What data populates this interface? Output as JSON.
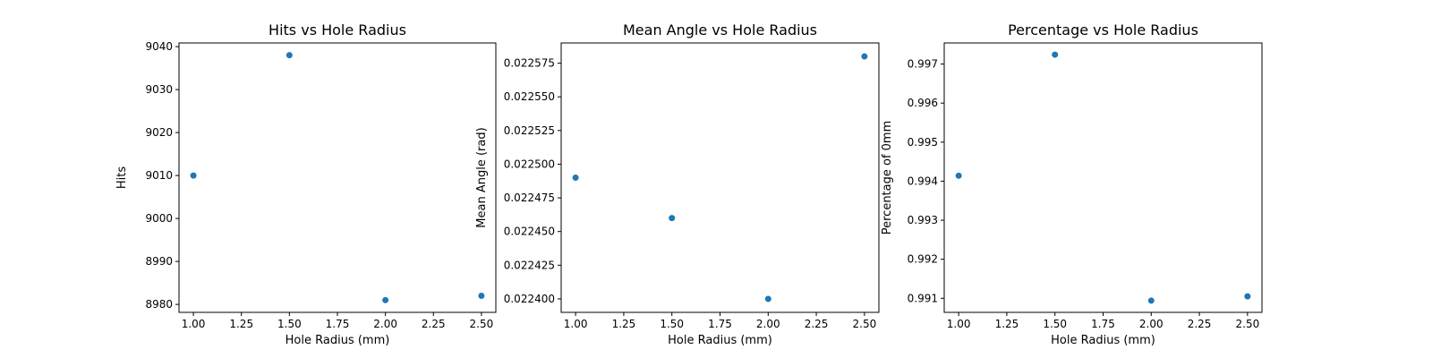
{
  "chart_data": [
    {
      "type": "scatter",
      "title": "Hits vs Hole Radius",
      "xlabel": "Hole Radius (mm)",
      "ylabel": "Hits",
      "color": "#1f77b4",
      "xlim": [
        0.925,
        2.575
      ],
      "ylim": [
        8978.15,
        9040.85
      ],
      "xticks": [
        "1.00",
        "1.25",
        "1.50",
        "1.75",
        "2.00",
        "2.25",
        "2.50"
      ],
      "xtick_values": [
        1.0,
        1.25,
        1.5,
        1.75,
        2.0,
        2.25,
        2.5
      ],
      "yticks": [
        "8980",
        "8990",
        "9000",
        "9010",
        "9020",
        "9030",
        "9040"
      ],
      "ytick_values": [
        8980,
        8990,
        9000,
        9010,
        9020,
        9030,
        9040
      ],
      "x": [
        1.0,
        1.5,
        2.0,
        2.5
      ],
      "y": [
        9010,
        9038,
        8981,
        8982
      ]
    },
    {
      "type": "scatter",
      "title": "Mean Angle vs Hole Radius",
      "xlabel": "Hole Radius (mm)",
      "ylabel": "Mean Angle (rad)",
      "color": "#1f77b4",
      "xlim": [
        0.925,
        2.575
      ],
      "ylim": [
        0.02239,
        0.02259
      ],
      "xticks": [
        "1.00",
        "1.25",
        "1.50",
        "1.75",
        "2.00",
        "2.25",
        "2.50"
      ],
      "xtick_values": [
        1.0,
        1.25,
        1.5,
        1.75,
        2.0,
        2.25,
        2.5
      ],
      "yticks": [
        "0.022400",
        "0.022425",
        "0.022450",
        "0.022475",
        "0.022500",
        "0.022525",
        "0.022550",
        "0.022575"
      ],
      "ytick_values": [
        0.0224,
        0.022425,
        0.02245,
        0.022475,
        0.0225,
        0.022525,
        0.02255,
        0.022575
      ],
      "x": [
        1.0,
        1.5,
        2.0,
        2.5
      ],
      "y": [
        0.02249,
        0.02246,
        0.0224,
        0.02258
      ]
    },
    {
      "type": "scatter",
      "title": "Percentage vs Hole Radius",
      "xlabel": "Hole Radius (mm)",
      "ylabel": "Percentage of 0mm",
      "color": "#1f77b4",
      "xlim": [
        0.925,
        2.575
      ],
      "ylim": [
        0.99064,
        0.99754
      ],
      "xticks": [
        "1.00",
        "1.25",
        "1.50",
        "1.75",
        "2.00",
        "2.25",
        "2.50"
      ],
      "xtick_values": [
        1.0,
        1.25,
        1.5,
        1.75,
        2.0,
        2.25,
        2.5
      ],
      "yticks": [
        "0.991",
        "0.992",
        "0.993",
        "0.994",
        "0.995",
        "0.996",
        "0.997"
      ],
      "ytick_values": [
        0.991,
        0.992,
        0.993,
        0.994,
        0.995,
        0.996,
        0.997
      ],
      "x": [
        1.0,
        1.5,
        2.0,
        2.5
      ],
      "y": [
        0.99414,
        0.99724,
        0.99094,
        0.99105
      ]
    }
  ]
}
